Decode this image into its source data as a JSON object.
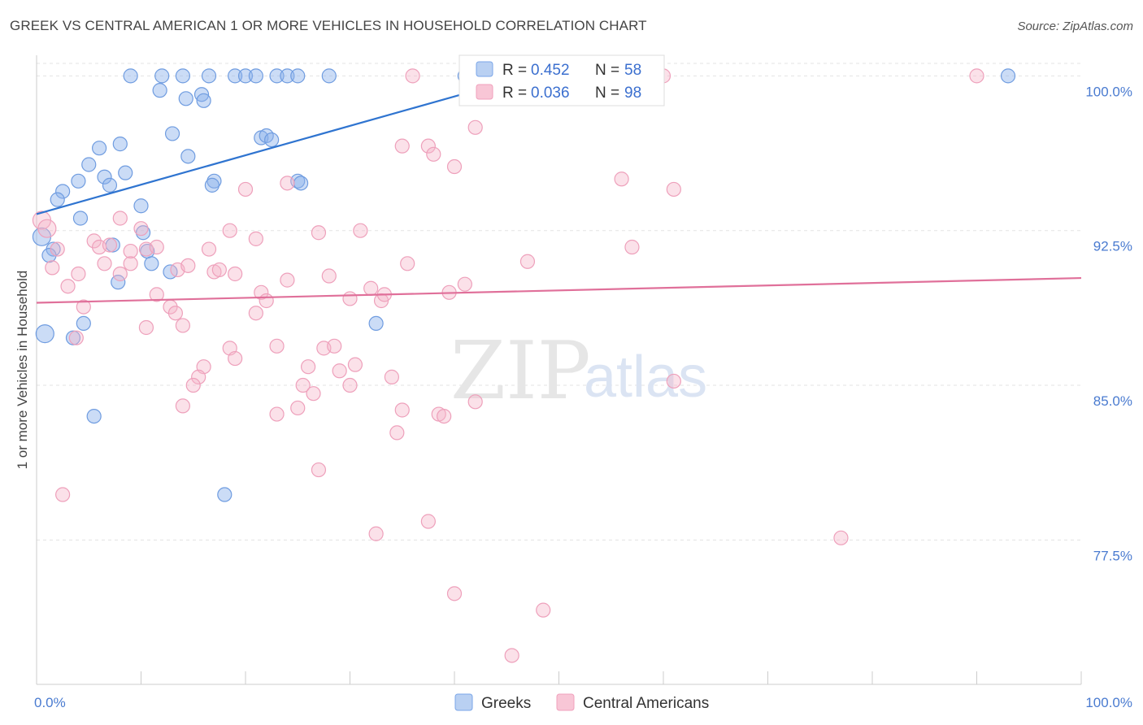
{
  "title": "GREEK VS CENTRAL AMERICAN 1 OR MORE VEHICLES IN HOUSEHOLD CORRELATION CHART",
  "source": "Source: ZipAtlas.com",
  "watermark": {
    "zip": "ZIP",
    "atlas": "atlas"
  },
  "colors": {
    "greeks": "#7aa6e8",
    "greeks_line": "#2f74d0",
    "central": "#f0a0bc",
    "central_line": "#e0709a",
    "tick_text": "#4a7bd0"
  },
  "legend": {
    "r_label": "R =",
    "n_label": "N =",
    "greeks": {
      "r": "0.452",
      "n": "58"
    },
    "central": {
      "r": "0.036",
      "n": "98"
    }
  },
  "bottom_legend": {
    "greeks": "Greeks",
    "central": "Central Americans"
  },
  "chart_data": {
    "type": "scatter",
    "title": "GREEK VS CENTRAL AMERICAN 1 OR MORE VEHICLES IN HOUSEHOLD CORRELATION CHART",
    "xlabel": "",
    "ylabel": "1 or more Vehicles in Household",
    "xlim": [
      0,
      100
    ],
    "ylim": [
      70.5,
      101
    ],
    "x_tick_labels": [
      "0.0%",
      "100.0%"
    ],
    "y_ticks": [
      77.5,
      85.0,
      92.5,
      100.0
    ],
    "y_tick_labels": [
      "77.5%",
      "85.0%",
      "92.5%",
      "100.0%"
    ],
    "grid": true,
    "series": [
      {
        "name": "Greeks",
        "trend": {
          "x0": 0,
          "y0": 93.3,
          "x1": 47,
          "y1": 100.0
        },
        "points": [
          [
            9,
            100
          ],
          [
            12,
            100
          ],
          [
            14,
            100
          ],
          [
            16.5,
            100
          ],
          [
            19,
            100
          ],
          [
            20,
            100
          ],
          [
            21,
            100
          ],
          [
            23,
            100
          ],
          [
            24,
            100
          ],
          [
            25,
            100
          ],
          [
            28,
            100
          ],
          [
            41,
            100
          ],
          [
            47,
            100
          ],
          [
            56,
            100
          ],
          [
            93,
            100
          ],
          [
            11.8,
            99.3
          ],
          [
            14.3,
            98.9
          ],
          [
            15.8,
            99.1
          ],
          [
            16,
            98.8
          ],
          [
            13,
            97.2
          ],
          [
            21.5,
            97.0
          ],
          [
            22,
            97.1
          ],
          [
            22.5,
            96.9
          ],
          [
            6,
            96.5
          ],
          [
            8,
            96.7
          ],
          [
            14.5,
            96.1
          ],
          [
            5,
            95.7
          ],
          [
            8.5,
            95.3
          ],
          [
            6.5,
            95.1
          ],
          [
            4,
            94.9
          ],
          [
            7,
            94.7
          ],
          [
            17,
            94.9
          ],
          [
            16.8,
            94.7
          ],
          [
            25,
            94.9
          ],
          [
            25.3,
            94.8
          ],
          [
            2.5,
            94.4
          ],
          [
            2,
            94.0
          ],
          [
            10,
            93.7
          ],
          [
            4.2,
            93.1
          ],
          [
            0.5,
            92.2
          ],
          [
            1.6,
            91.6
          ],
          [
            1.2,
            91.3
          ],
          [
            7.3,
            91.8
          ],
          [
            10.6,
            91.5
          ],
          [
            10.2,
            92.4
          ],
          [
            11,
            90.9
          ],
          [
            12.8,
            90.5
          ],
          [
            7.8,
            90.0
          ],
          [
            0.8,
            87.5
          ],
          [
            4.5,
            88.0
          ],
          [
            3.5,
            87.3
          ],
          [
            32.5,
            88.0
          ],
          [
            5.5,
            83.5
          ],
          [
            18,
            79.7
          ]
        ]
      },
      {
        "name": "Central Americans",
        "trend": {
          "x0": 0,
          "y0": 89.0,
          "x1": 100,
          "y1": 90.2
        },
        "points": [
          [
            36,
            100
          ],
          [
            48,
            100
          ],
          [
            60,
            100
          ],
          [
            90,
            100
          ],
          [
            42,
            97.5
          ],
          [
            35,
            96.6
          ],
          [
            37.5,
            96.6
          ],
          [
            38,
            96.2
          ],
          [
            40,
            95.6
          ],
          [
            56,
            95.0
          ],
          [
            24,
            94.8
          ],
          [
            20,
            94.5
          ],
          [
            61,
            94.5
          ],
          [
            0.5,
            93.0
          ],
          [
            1,
            92.6
          ],
          [
            8,
            93.1
          ],
          [
            10,
            92.6
          ],
          [
            18.5,
            92.5
          ],
          [
            31,
            92.5
          ],
          [
            27,
            92.4
          ],
          [
            21,
            92.1
          ],
          [
            57,
            91.7
          ],
          [
            5.5,
            92.0
          ],
          [
            6,
            91.7
          ],
          [
            7,
            91.8
          ],
          [
            9,
            91.5
          ],
          [
            10.5,
            91.6
          ],
          [
            11.5,
            91.7
          ],
          [
            13.5,
            90.6
          ],
          [
            16.5,
            91.6
          ],
          [
            2,
            91.6
          ],
          [
            1.5,
            90.7
          ],
          [
            4,
            90.4
          ],
          [
            6.5,
            90.9
          ],
          [
            8,
            90.4
          ],
          [
            9,
            90.9
          ],
          [
            14.5,
            90.8
          ],
          [
            17,
            90.5
          ],
          [
            17.5,
            90.6
          ],
          [
            19,
            90.4
          ],
          [
            24,
            90.1
          ],
          [
            28,
            90.3
          ],
          [
            35.5,
            90.9
          ],
          [
            47,
            91.0
          ],
          [
            41,
            89.9
          ],
          [
            32,
            89.7
          ],
          [
            3,
            89.8
          ],
          [
            11.5,
            89.4
          ],
          [
            21.5,
            89.5
          ],
          [
            22,
            89.1
          ],
          [
            30,
            89.2
          ],
          [
            33,
            89.1
          ],
          [
            33.3,
            89.4
          ],
          [
            39.5,
            89.5
          ],
          [
            4.5,
            88.8
          ],
          [
            12.8,
            88.8
          ],
          [
            13.3,
            88.5
          ],
          [
            21,
            88.5
          ],
          [
            10.5,
            87.8
          ],
          [
            14,
            87.9
          ],
          [
            3.8,
            87.3
          ],
          [
            18.5,
            86.8
          ],
          [
            23,
            86.9
          ],
          [
            27.5,
            86.8
          ],
          [
            28.5,
            86.9
          ],
          [
            19,
            86.3
          ],
          [
            16,
            85.9
          ],
          [
            26,
            85.9
          ],
          [
            29,
            85.7
          ],
          [
            30.5,
            86.0
          ],
          [
            34,
            85.4
          ],
          [
            15.5,
            85.4
          ],
          [
            15,
            85.0
          ],
          [
            25.5,
            85.0
          ],
          [
            26.5,
            84.6
          ],
          [
            30,
            85.0
          ],
          [
            42,
            84.2
          ],
          [
            61,
            85.2
          ],
          [
            14,
            84.0
          ],
          [
            23,
            83.6
          ],
          [
            25,
            83.9
          ],
          [
            35,
            83.8
          ],
          [
            38.5,
            83.6
          ],
          [
            39,
            83.5
          ],
          [
            34.5,
            82.7
          ],
          [
            27,
            80.9
          ],
          [
            2.5,
            79.7
          ],
          [
            37.5,
            78.4
          ],
          [
            32.5,
            77.8
          ],
          [
            77,
            77.6
          ],
          [
            40,
            74.9
          ],
          [
            48.5,
            74.1
          ],
          [
            45.5,
            71.9
          ]
        ]
      }
    ]
  }
}
